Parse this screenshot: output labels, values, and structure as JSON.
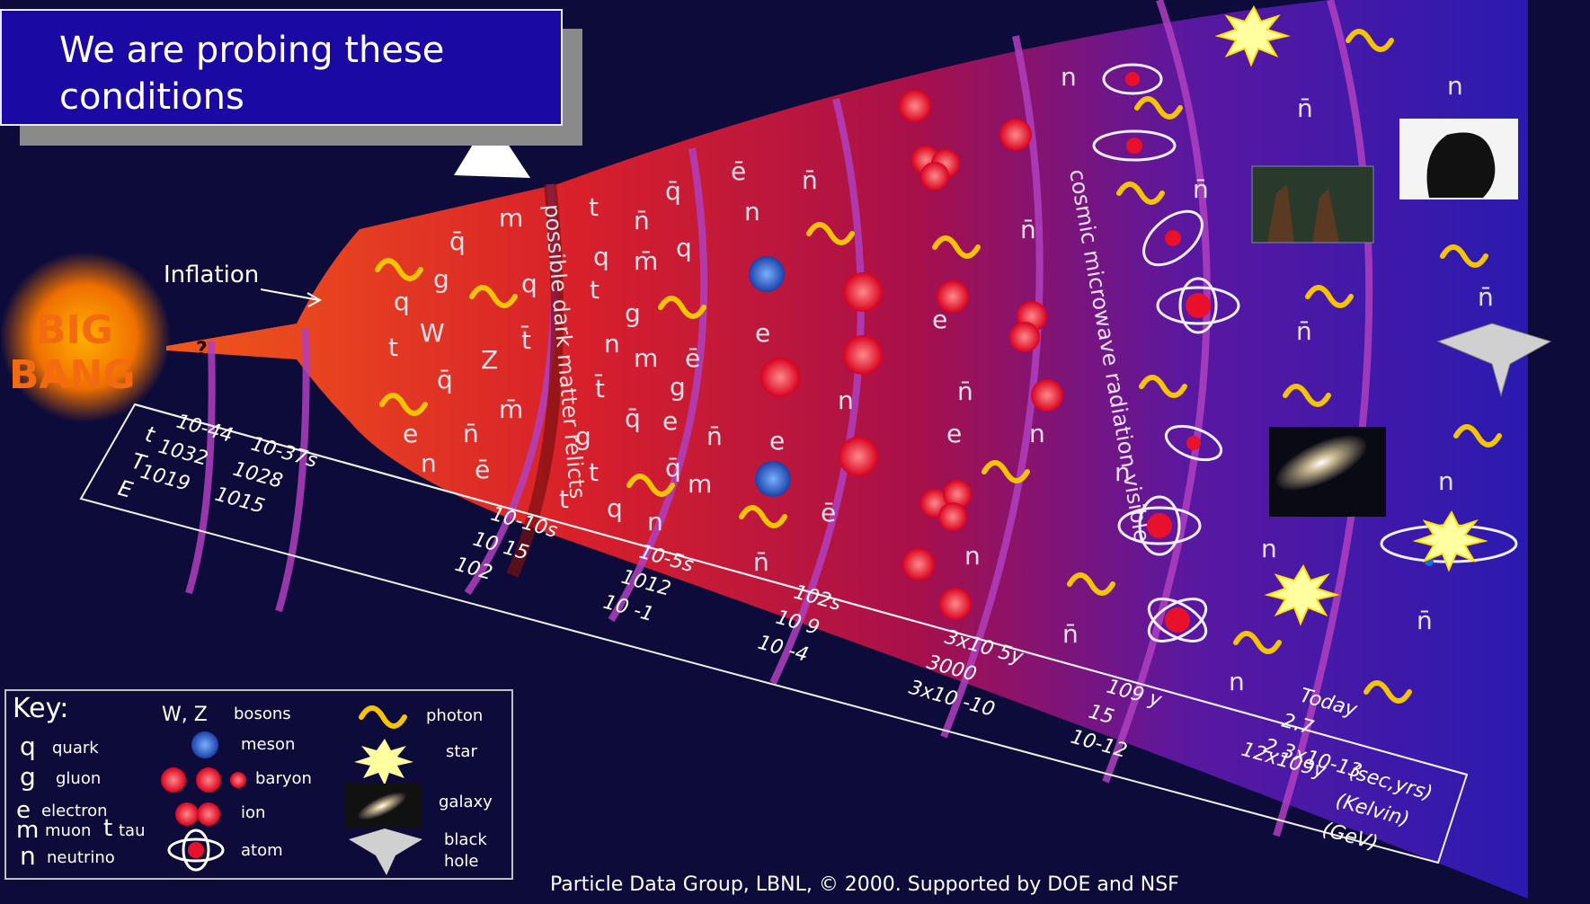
{
  "callout": {
    "text_line1": "We are probing these",
    "text_line2": "conditions"
  },
  "big_bang": {
    "line1": "BIG",
    "line2": "BANG"
  },
  "inflation_label": "Inflation",
  "question_mark": "?",
  "band_labels": {
    "dark_matter": "possible dark matter relicts",
    "cmb": "cosmic microwave radiation visible"
  },
  "axis": {
    "row_labels": [
      "t",
      "T",
      "E"
    ],
    "columns": [
      {
        "t": "10-44",
        "T": "1032",
        "E": "1019"
      },
      {
        "t": "10-37s",
        "T": "1028",
        "E": "1015"
      },
      {
        "t": "10-10s",
        "T": "10 15",
        "E": "102"
      },
      {
        "t": "10-5s",
        "T": "1012",
        "E": "10 -1"
      },
      {
        "t": "102s",
        "T": "10 9",
        "E": "10 -4"
      },
      {
        "t": "3x10 5y",
        "T": "3000",
        "E": "3x10 -10"
      },
      {
        "t": "109 y",
        "T": "15",
        "E": "10-12"
      },
      {
        "t": "Today",
        "T": "2.7",
        "E": "2.3x10-13"
      }
    ],
    "last_t": "12x109y",
    "units": [
      "(sec,yrs)",
      "(Kelvin)",
      "(GeV)"
    ]
  },
  "particles": {
    "q": "q",
    "qbar": "q̄",
    "g": "g",
    "t": "t",
    "tbar": "t̄",
    "W": "W",
    "Z": "Z",
    "m": "m",
    "mbar": "m̄",
    "e": "e",
    "ebar": "ē",
    "n": "n",
    "nbar": "n̄"
  },
  "key": {
    "title": "Key:",
    "items": {
      "quark_sym": "q",
      "quark": "quark",
      "gluon_sym": "g",
      "gluon": "gluon",
      "electron_sym": "e",
      "electron": "electron",
      "muon_sym": "m",
      "muon": "muon",
      "tau_sym": "t",
      "tau": "tau",
      "neutrino_sym": "n",
      "neutrino": "neutrino",
      "bosons_sym": "W, Z",
      "bosons": "bosons",
      "meson": "meson",
      "baryon": "baryon",
      "ion": "ion",
      "atom": "atom",
      "photon": "photon",
      "star": "star",
      "galaxy": "galaxy",
      "black_hole_1": "black",
      "black_hole_2": "hole"
    }
  },
  "footer": "Particle Data Group, LBNL, © 2000.    Supported by DOE and NSF",
  "colors": {
    "background": "#0d0b3a",
    "callout": "#1a0aa3",
    "photon": "#f5c400",
    "particle_red": "#e8102a",
    "band": "#b040c0"
  }
}
